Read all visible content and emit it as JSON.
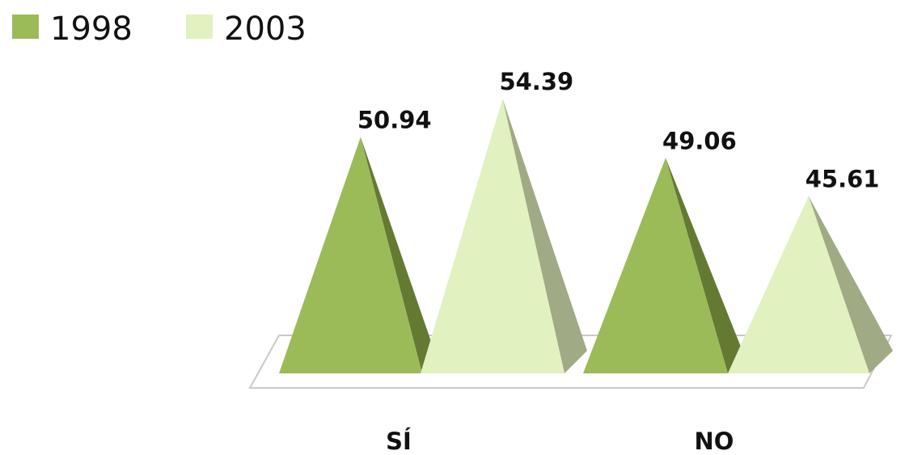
{
  "chart_data": {
    "type": "bar",
    "shape": "pyramid-3d",
    "categories": [
      "SÍ",
      "NO"
    ],
    "series": [
      {
        "name": "1998",
        "values": [
          50.94,
          49.06
        ],
        "color": "#9BBB59",
        "shade": "#647A32"
      },
      {
        "name": "2003",
        "values": [
          54.39,
          45.61
        ],
        "color": "#E1F1BF",
        "shade": "#A0AA84"
      }
    ],
    "value_labels": [
      "50.94",
      "54.39",
      "49.06",
      "45.61"
    ],
    "legend_position": "top-left",
    "grid": false,
    "ylim": [
      30,
      56
    ]
  }
}
